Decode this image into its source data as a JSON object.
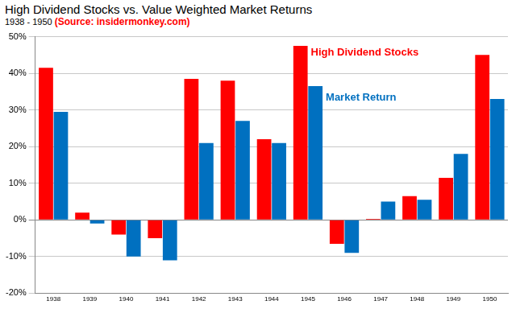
{
  "chart_data": {
    "type": "bar",
    "title": "High Dividend Stocks vs. Value Weighted Market Returns",
    "subtitle": "1938 - 1950",
    "annotations": [
      {
        "text": "(Source: insidermonkey.com)",
        "color": "#ff0000"
      }
    ],
    "categories": [
      "1938",
      "1939",
      "1940",
      "1941",
      "1942",
      "1943",
      "1944",
      "1945",
      "1946",
      "1947",
      "1948",
      "1949",
      "1950"
    ],
    "series": [
      {
        "name": "High Dividend Stocks",
        "color": "#ff0000",
        "values": [
          41.5,
          2,
          -4,
          -5,
          38.5,
          38,
          22,
          47.5,
          -6.5,
          0.3,
          6.5,
          11.5,
          45
        ]
      },
      {
        "name": "Market Return",
        "color": "#0070c0",
        "values": [
          29.5,
          -1,
          -10,
          -11,
          21,
          27,
          21,
          36.5,
          -9,
          5,
          5.5,
          18,
          33
        ]
      }
    ],
    "ylim": [
      -20,
      50
    ],
    "yticks": [
      {
        "value": -20,
        "label": "-20%"
      },
      {
        "value": -10,
        "label": "-10%"
      },
      {
        "value": 0,
        "label": "0%"
      },
      {
        "value": 10,
        "label": "10%"
      },
      {
        "value": 20,
        "label": "20%"
      },
      {
        "value": 30,
        "label": "30%"
      },
      {
        "value": 40,
        "label": "40%"
      },
      {
        "value": 50,
        "label": "50%"
      }
    ],
    "grid": true
  }
}
